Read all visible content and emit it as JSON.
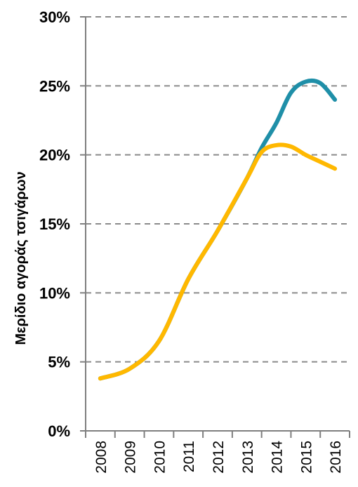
{
  "chart_data": {
    "type": "line",
    "title": "",
    "xlabel": "",
    "ylabel": "Μερίδιο αγοράς τσιγάρων",
    "x": [
      "2008",
      "2009",
      "2010",
      "2011",
      "2012",
      "2013",
      "2014",
      "2015",
      "2016"
    ],
    "yticks": [
      "0%",
      "5%",
      "10%",
      "15%",
      "20%",
      "25%",
      "30%"
    ],
    "ylim": [
      0,
      30
    ],
    "grid": "horizontal-dashed",
    "legend": "none",
    "series": [
      {
        "color": "#1f8fa8",
        "x": [
          2008,
          2009,
          2010,
          2011,
          2012,
          2013,
          2013.5,
          2014,
          2014.5,
          2015,
          2015.5,
          2016
        ],
        "values": [
          3.8,
          4.5,
          6.5,
          11.0,
          14.5,
          18.3,
          20.5,
          22.3,
          24.5,
          25.3,
          25.2,
          24.0
        ]
      },
      {
        "color": "#ffb800",
        "x": [
          2008,
          2009,
          2010,
          2011,
          2012,
          2013,
          2013.5,
          2014,
          2014.5,
          2015,
          2015.5,
          2016
        ],
        "values": [
          3.8,
          4.5,
          6.5,
          11.0,
          14.5,
          18.3,
          20.2,
          20.7,
          20.6,
          20.0,
          19.5,
          19.0
        ]
      }
    ]
  }
}
